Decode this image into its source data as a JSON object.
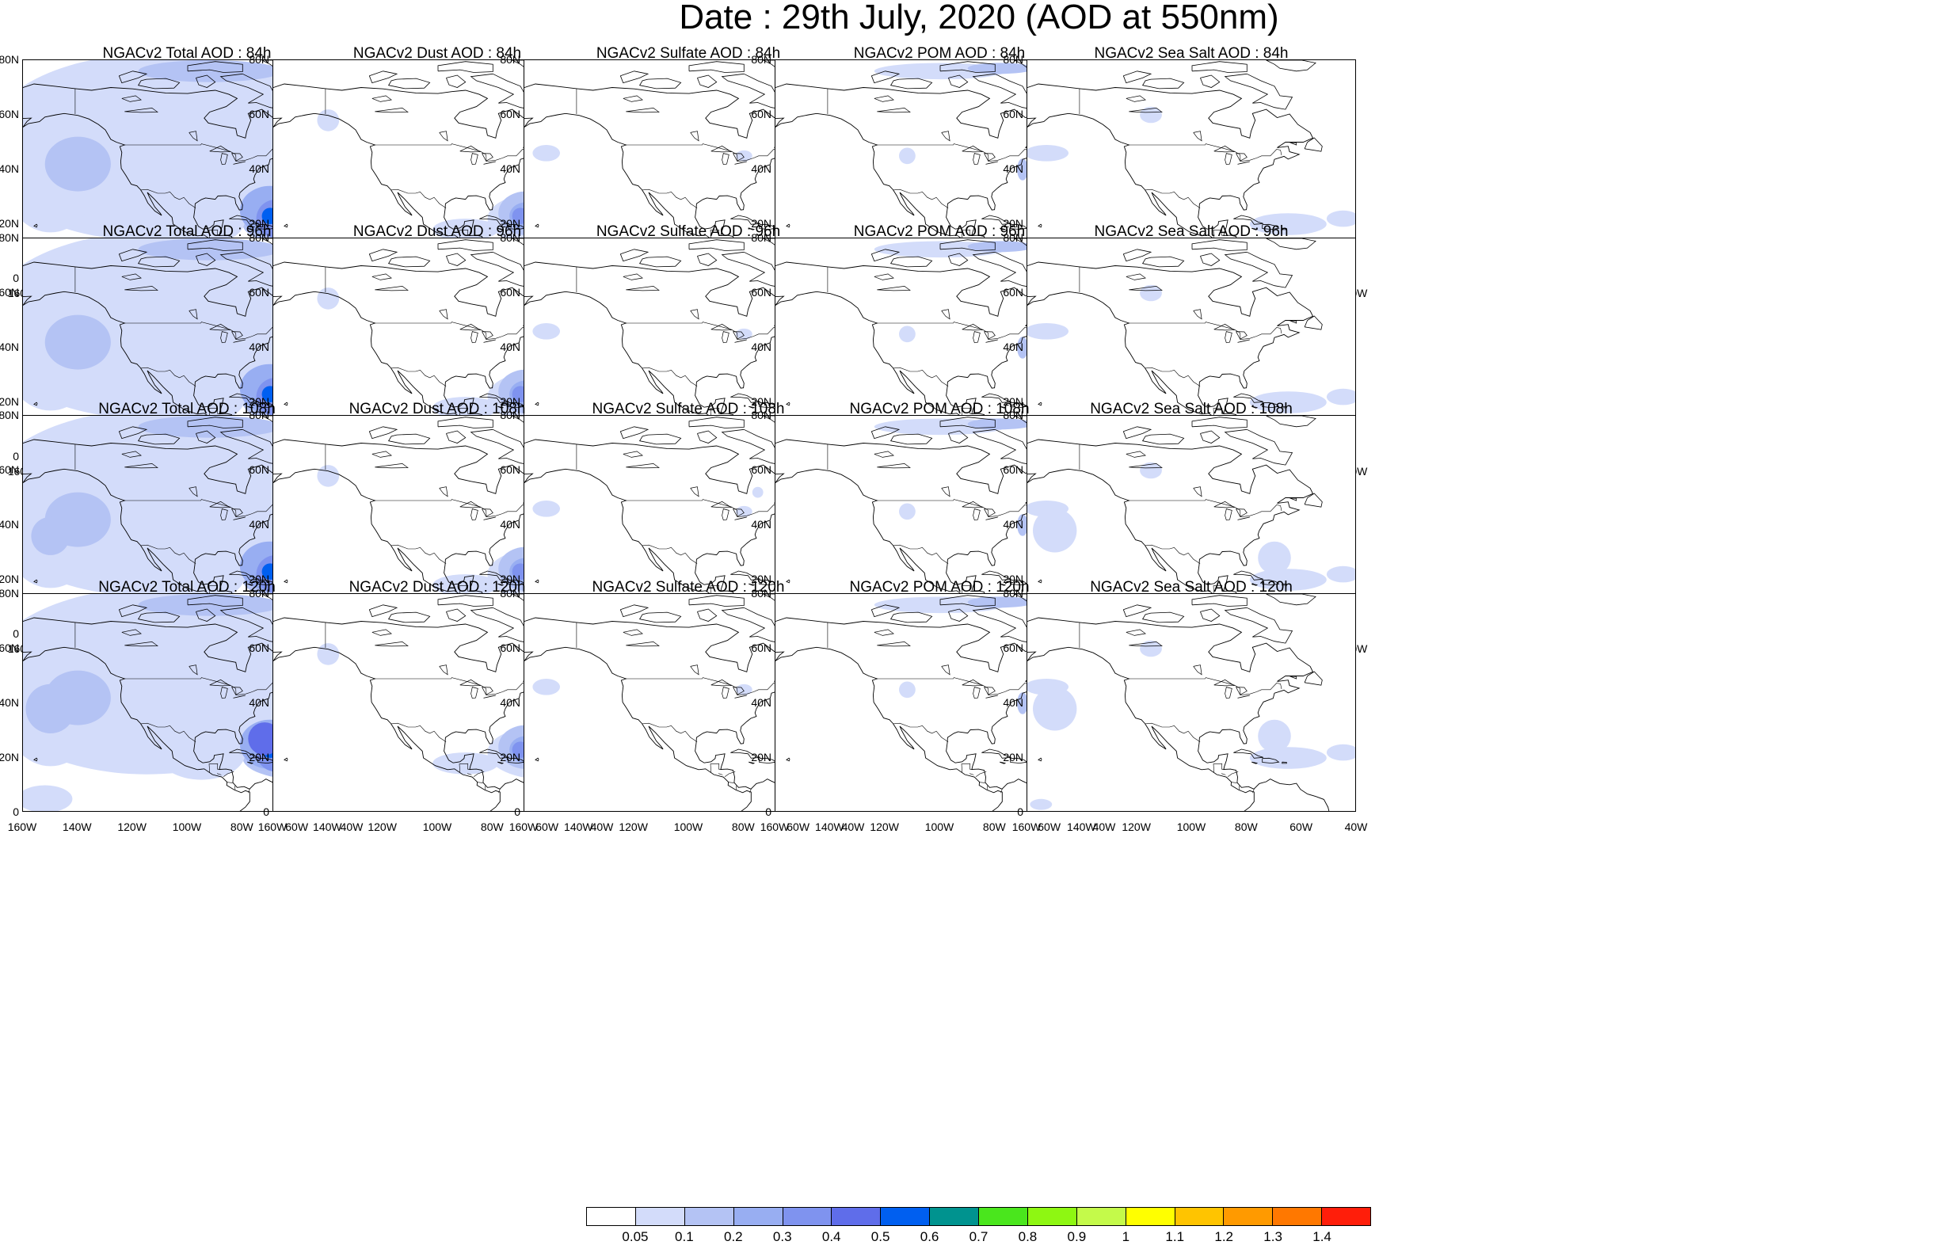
{
  "title": "Date : 29th July, 2020 (AOD at 550nm)",
  "axes": {
    "y_ticks": [
      "80N",
      "60N",
      "40N",
      "20N",
      "0"
    ],
    "x_ticks": [
      "160W",
      "140W",
      "120W",
      "100W",
      "80W",
      "60W",
      "40W"
    ]
  },
  "rows": [
    {
      "forecast_hour": "84h",
      "panels": [
        {
          "variable": "total",
          "title": "NGACv2 Total AOD : 84h"
        },
        {
          "variable": "dust",
          "title": "NGACv2 Dust AOD : 84h"
        },
        {
          "variable": "sulfate",
          "title": "NGACv2 Sulfate AOD : 84h"
        },
        {
          "variable": "pom",
          "title": "NGACv2 POM AOD : 84h"
        },
        {
          "variable": "seasalt",
          "title": "NGACv2 Sea Salt AOD : 84h"
        }
      ]
    },
    {
      "forecast_hour": "96h",
      "panels": [
        {
          "variable": "total",
          "title": "NGACv2 Total AOD : 96h"
        },
        {
          "variable": "dust",
          "title": "NGACv2 Dust AOD : 96h"
        },
        {
          "variable": "sulfate",
          "title": "NGACv2 Sulfate AOD : 96h"
        },
        {
          "variable": "pom",
          "title": "NGACv2 POM AOD : 96h"
        },
        {
          "variable": "seasalt",
          "title": "NGACv2 Sea Salt AOD : 96h"
        }
      ]
    },
    {
      "forecast_hour": "108h",
      "panels": [
        {
          "variable": "total",
          "title": "NGACv2 Total AOD : 108h"
        },
        {
          "variable": "dust",
          "title": "NGACv2 Dust AOD : 108h"
        },
        {
          "variable": "sulfate",
          "title": "NGACv2 Sulfate AOD : 108h"
        },
        {
          "variable": "pom",
          "title": "NGACv2 POM AOD : 108h"
        },
        {
          "variable": "seasalt",
          "title": "NGACv2 Sea Salt AOD : 108h"
        }
      ]
    },
    {
      "forecast_hour": "120h",
      "panels": [
        {
          "variable": "total",
          "title": "NGACv2 Total AOD : 120h"
        },
        {
          "variable": "dust",
          "title": "NGACv2 Dust AOD : 120h"
        },
        {
          "variable": "sulfate",
          "title": "NGACv2 Sulfate AOD : 120h"
        },
        {
          "variable": "pom",
          "title": "NGACv2 POM AOD : 120h"
        },
        {
          "variable": "seasalt",
          "title": "NGACv2 Sea Salt  AOD : 120h"
        }
      ]
    }
  ],
  "colorbar": {
    "labels": [
      "0.05",
      "0.1",
      "0.2",
      "0.3",
      "0.4",
      "0.5",
      "0.6",
      "0.7",
      "0.8",
      "0.9",
      "1",
      "1.1",
      "1.2",
      "1.3",
      "1.4"
    ],
    "colors": [
      "#ffffff",
      "#d3dcfa",
      "#b4c3f4",
      "#98aef2",
      "#7f93ef",
      "#5f6dea",
      "#005ff0",
      "#00938f",
      "#4ae61d",
      "#8ef712",
      "#c4fa4a",
      "#ffff00",
      "#ffc400",
      "#ff9a00",
      "#ff7800",
      "#ff1e0a"
    ]
  }
}
